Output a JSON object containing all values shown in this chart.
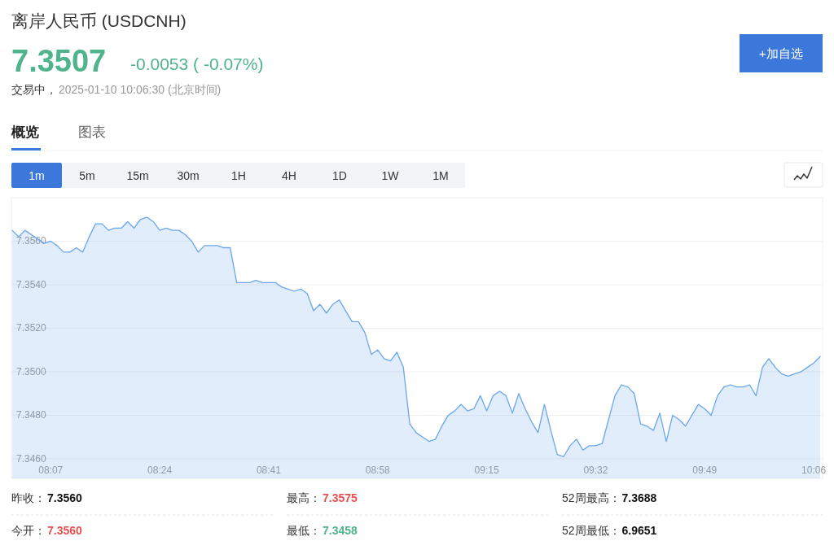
{
  "chart_data": {
    "type": "area",
    "title": "离岸人民币 (USDCNH)",
    "categories": [
      null,
      null,
      null,
      null,
      null,
      null,
      "08:07",
      null,
      null,
      null,
      null,
      null,
      null,
      null,
      null,
      null,
      null,
      null,
      null,
      null,
      null,
      null,
      null,
      "08:24",
      null,
      null,
      null,
      null,
      null,
      null,
      null,
      null,
      null,
      null,
      null,
      null,
      null,
      null,
      null,
      null,
      "08:41",
      null,
      null,
      null,
      null,
      null,
      null,
      null,
      null,
      null,
      null,
      null,
      null,
      null,
      null,
      null,
      null,
      "08:58",
      null,
      null,
      null,
      null,
      null,
      null,
      null,
      null,
      null,
      null,
      null,
      null,
      null,
      null,
      null,
      null,
      "09:15",
      null,
      null,
      null,
      null,
      null,
      null,
      null,
      null,
      null,
      null,
      null,
      null,
      null,
      null,
      null,
      null,
      "09:32",
      null,
      null,
      null,
      null,
      null,
      null,
      null,
      null,
      null,
      null,
      null,
      null,
      null,
      null,
      null,
      null,
      "09:49",
      null,
      null,
      null,
      null,
      null,
      null,
      null,
      null,
      null,
      null,
      null,
      null,
      null,
      null,
      null,
      null,
      "10:06",
      null
    ],
    "values": [
      7.3565,
      7.3562,
      7.3565,
      7.3563,
      7.3561,
      7.3559,
      7.356,
      7.3558,
      7.3555,
      7.3555,
      7.3557,
      7.3555,
      7.3562,
      7.3568,
      7.3568,
      7.3565,
      7.3566,
      7.3566,
      7.3569,
      7.3566,
      7.357,
      7.3571,
      7.3569,
      7.3565,
      7.3566,
      7.3565,
      7.3565,
      7.3563,
      7.356,
      7.3555,
      7.3558,
      7.3558,
      7.3558,
      7.3557,
      7.3557,
      7.3541,
      7.3541,
      7.3541,
      7.3542,
      7.3541,
      7.3541,
      7.3541,
      7.3539,
      7.3538,
      7.3537,
      7.3538,
      7.3536,
      7.3528,
      7.3531,
      7.3527,
      7.3531,
      7.3533,
      7.3528,
      7.3523,
      7.3523,
      7.3518,
      7.3508,
      7.351,
      7.3506,
      7.3505,
      7.3509,
      7.3502,
      7.3476,
      7.3472,
      7.347,
      7.3468,
      7.3469,
      7.3475,
      7.348,
      7.3482,
      7.3485,
      7.3482,
      7.3483,
      7.3489,
      7.3482,
      7.3489,
      7.3491,
      7.3489,
      7.3481,
      7.349,
      7.3483,
      7.3477,
      7.3472,
      7.3485,
      7.3473,
      7.3462,
      7.3461,
      7.3466,
      7.3469,
      7.3464,
      7.3466,
      7.3466,
      7.3467,
      7.3478,
      7.3489,
      7.3494,
      7.3493,
      7.349,
      7.3476,
      7.3475,
      7.3473,
      7.3481,
      7.3468,
      7.348,
      7.3478,
      7.3475,
      7.348,
      7.3485,
      7.3483,
      7.348,
      7.3489,
      7.3493,
      7.3494,
      7.3493,
      7.3493,
      7.3494,
      7.3489,
      7.3502,
      7.3506,
      7.3502,
      7.3499,
      7.3498,
      7.3499,
      7.35,
      7.3502,
      7.3504,
      7.3507
    ],
    "color": "#6aa6ec",
    "ylim": [
      7.3451,
      7.358
    ],
    "yticks": [
      {
        "value": 7.346,
        "label": "7.3460"
      },
      {
        "value": 7.348,
        "label": "7.3480"
      },
      {
        "value": 7.35,
        "label": "7.3500"
      },
      {
        "value": 7.352,
        "label": "7.3520"
      },
      {
        "value": 7.354,
        "label": "7.3540"
      },
      {
        "value": 7.356,
        "label": "7.3560"
      }
    ],
    "grid": "y",
    "annotations": [
      "7.3507",
      "-0.0053 ( -0.07%)",
      "交易中，",
      "2025-01-10 10:06:30  (北京时间)",
      "概览",
      "图表",
      "+加自选",
      "1m",
      "5m",
      "15m",
      "30m",
      "1H",
      "4H",
      "1D",
      "1W",
      "1M",
      "昨收：",
      "7.3560",
      "最高：",
      "7.3575",
      "52周最高：",
      "7.3688",
      "今开：",
      "7.3560",
      "最低：",
      "7.3458",
      "52周最低：",
      "6.9651"
    ]
  }
}
